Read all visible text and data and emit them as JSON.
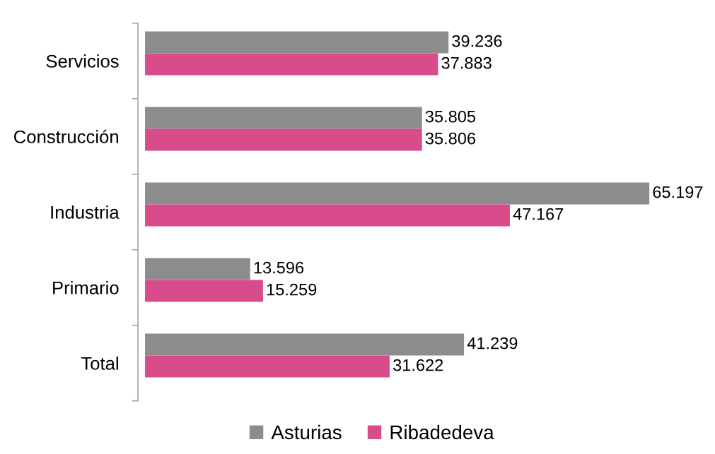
{
  "chart_data": {
    "type": "bar",
    "orientation": "horizontal",
    "categories": [
      "Servicios",
      "Construcción",
      "Industria",
      "Primario",
      "Total"
    ],
    "series": [
      {
        "name": "Asturias",
        "color": "#8c8c8c",
        "values": [
          39.236,
          35.805,
          65.197,
          13.596,
          41.239
        ]
      },
      {
        "name": "Ribadedeva",
        "color": "#d84c8c",
        "values": [
          37.883,
          35.806,
          47.167,
          15.259,
          31.622
        ]
      }
    ],
    "data_labels": true,
    "legend": "bottom",
    "grid": false,
    "tick_labels": "y"
  }
}
